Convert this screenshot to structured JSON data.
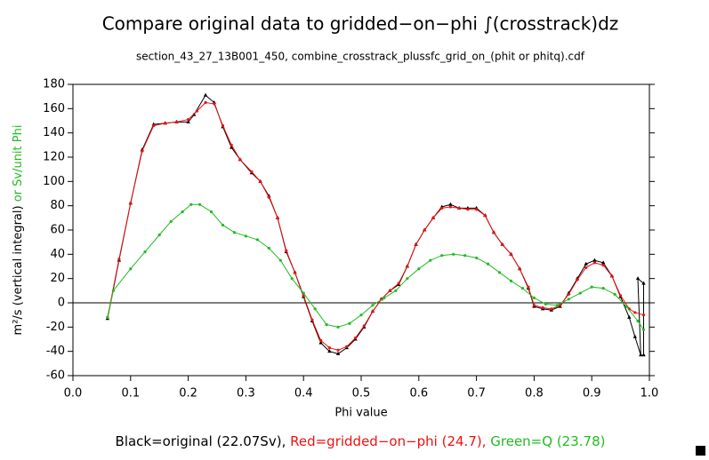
{
  "chart_data": {
    "type": "line",
    "title": "Compare original data to gridded−on−phi ∫(crosstrack)dz",
    "subtitle": "section_43_27_13B001_450, combine_crosstrack_plussfc_grid_on_(phit or phitq).cdf",
    "x_label": "Phi value",
    "y_label": [
      "m²/s (vertical integral)",
      " or Sv/unit Phi"
    ],
    "y_label_colors": [
      "#000000",
      "#22bb22"
    ],
    "xlim": [
      0,
      1
    ],
    "xticks": [
      {
        "value": 0,
        "label": "0.0"
      },
      0.1,
      0.2,
      0.3,
      0.4,
      0.5,
      0.6,
      0.7,
      0.8,
      0.9,
      {
        "value": 1,
        "label": "1.0"
      }
    ],
    "ylim": [
      -60,
      180
    ],
    "yticks": [
      -60,
      -40,
      -20,
      0,
      20,
      40,
      60,
      80,
      100,
      120,
      140,
      160,
      180
    ],
    "zero_line": true,
    "series": [
      {
        "name": "Black=original (22.07Sv), ",
        "color": "#000000",
        "marker": "triangle",
        "x": [
          0.06,
          0.08,
          0.1,
          0.12,
          0.14,
          0.16,
          0.18,
          0.2,
          0.21,
          0.23,
          0.245,
          0.26,
          0.275,
          0.29,
          0.31,
          0.325,
          0.34,
          0.355,
          0.37,
          0.385,
          0.4,
          0.415,
          0.43,
          0.445,
          0.46,
          0.475,
          0.49,
          0.505,
          0.52,
          0.535,
          0.55,
          0.565,
          0.58,
          0.595,
          0.61,
          0.625,
          0.64,
          0.655,
          0.67,
          0.685,
          0.7,
          0.715,
          0.73,
          0.745,
          0.76,
          0.775,
          0.79,
          0.8,
          0.815,
          0.83,
          0.845,
          0.86,
          0.875,
          0.89,
          0.905,
          0.92,
          0.935,
          0.95,
          0.965,
          0.975,
          0.985,
          0.98,
          0.99,
          0.99
        ],
        "values": [
          -13,
          35,
          82,
          126,
          147,
          148,
          149,
          149,
          155,
          171,
          165,
          145,
          128,
          118,
          107,
          100,
          88,
          70,
          42,
          25,
          5,
          -15,
          -33,
          -40,
          -42,
          -37,
          -30,
          -20,
          -7,
          3,
          10,
          15,
          30,
          48,
          60,
          70,
          79,
          81,
          78,
          78,
          78,
          72,
          58,
          48,
          40,
          28,
          12,
          -3,
          -5,
          -6,
          -3,
          8,
          20,
          32,
          35,
          33,
          22,
          5,
          -12,
          -28,
          -43,
          20,
          16,
          -43
        ]
      },
      {
        "name": "Red=gridded−on−phi (24.7), ",
        "color": "#ee1111",
        "marker": "dot",
        "x": [
          0.06,
          0.08,
          0.1,
          0.12,
          0.14,
          0.16,
          0.18,
          0.2,
          0.215,
          0.23,
          0.245,
          0.26,
          0.275,
          0.29,
          0.31,
          0.325,
          0.34,
          0.355,
          0.37,
          0.385,
          0.4,
          0.415,
          0.43,
          0.445,
          0.46,
          0.475,
          0.49,
          0.505,
          0.52,
          0.535,
          0.55,
          0.565,
          0.58,
          0.595,
          0.61,
          0.625,
          0.64,
          0.655,
          0.67,
          0.685,
          0.7,
          0.715,
          0.73,
          0.745,
          0.76,
          0.775,
          0.79,
          0.8,
          0.815,
          0.83,
          0.845,
          0.86,
          0.875,
          0.89,
          0.905,
          0.92,
          0.935,
          0.95,
          0.965,
          0.975,
          0.99
        ],
        "values": [
          -12,
          36,
          82,
          125,
          146,
          148,
          149,
          151,
          158,
          165,
          164,
          146,
          130,
          118,
          108,
          100,
          87,
          70,
          43,
          25,
          6,
          -14,
          -31,
          -37,
          -39,
          -36,
          -29,
          -19,
          -7,
          3,
          10,
          16,
          30,
          48,
          60,
          70,
          78,
          79,
          78,
          77,
          77,
          72,
          58,
          48,
          40,
          28,
          13,
          -2,
          -4,
          -5,
          -2,
          7,
          19,
          29,
          33,
          31,
          22,
          6,
          -5,
          -8,
          -10
        ]
      },
      {
        "name": "Green=Q (23.78)",
        "color": "#22bb22",
        "marker": "dot",
        "x": [
          0.06,
          0.07,
          0.1,
          0.125,
          0.15,
          0.17,
          0.19,
          0.205,
          0.22,
          0.24,
          0.26,
          0.28,
          0.3,
          0.32,
          0.34,
          0.36,
          0.38,
          0.4,
          0.42,
          0.44,
          0.46,
          0.48,
          0.5,
          0.52,
          0.54,
          0.56,
          0.58,
          0.6,
          0.62,
          0.64,
          0.66,
          0.68,
          0.7,
          0.72,
          0.74,
          0.76,
          0.78,
          0.8,
          0.82,
          0.84,
          0.86,
          0.88,
          0.9,
          0.92,
          0.94,
          0.96,
          0.98,
          0.99
        ],
        "values": [
          -12,
          10,
          28,
          42,
          56,
          67,
          75,
          81,
          81,
          75,
          64,
          58,
          55,
          52,
          45,
          35,
          20,
          8,
          -5,
          -18,
          -20,
          -17,
          -10,
          -2,
          4,
          10,
          20,
          28,
          35,
          39,
          40,
          39,
          37,
          32,
          25,
          18,
          12,
          4,
          -1,
          -2,
          3,
          8,
          13,
          12,
          7,
          -3,
          -15,
          -22
        ]
      }
    ]
  }
}
